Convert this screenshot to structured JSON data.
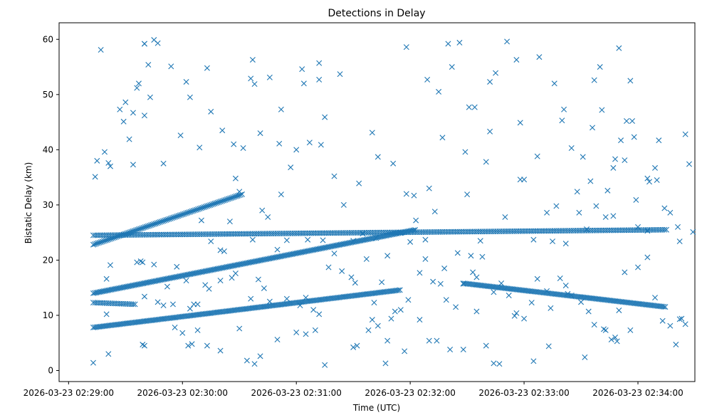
{
  "chart_data": {
    "type": "scatter",
    "title": "Detections in Delay",
    "xlabel": "Time (UTC)",
    "ylabel": "Bistatic Delay (km)",
    "x_unit": "seconds since 2026-03-23 02:29:00",
    "xlim": [
      -5,
      330
    ],
    "ylim": [
      -2,
      63
    ],
    "xticks": [
      {
        "value": 0,
        "label": "2026-03-23 02:29:00"
      },
      {
        "value": 60,
        "label": "2026-03-23 02:30:00"
      },
      {
        "value": 120,
        "label": "2026-03-23 02:31:00"
      },
      {
        "value": 180,
        "label": "2026-03-23 02:32:00"
      },
      {
        "value": 240,
        "label": "2026-03-23 02:33:00"
      },
      {
        "value": 300,
        "label": "2026-03-23 02:34:00"
      }
    ],
    "yticks": [
      0,
      10,
      20,
      30,
      40,
      50,
      60
    ],
    "marker": "x",
    "color": "#1f77b4",
    "tracks": [
      {
        "name": "lower rising track",
        "x_start": 13,
        "y_start": 7.8,
        "x_end": 175,
        "y_end": 14.6,
        "step": 0.8
      },
      {
        "name": "middle rising track",
        "x_start": 13,
        "y_start": 14,
        "x_end": 183,
        "y_end": 25.5,
        "step": 0.8
      },
      {
        "name": "upper diagonal track",
        "x_start": 13,
        "y_start": 22.8,
        "x_end": 92,
        "y_end": 32,
        "step": 0.8
      },
      {
        "name": "level track near 25 km",
        "x_start": 13,
        "y_start": 24.5,
        "x_end": 315,
        "y_end": 25.5,
        "step": 1.0
      },
      {
        "name": "descending track",
        "x_start": 208,
        "y_start": 15.8,
        "x_end": 315,
        "y_end": 11.5,
        "step": 0.8
      },
      {
        "name": "short 12 km segment",
        "x_start": 13,
        "y_start": 12.3,
        "x_end": 35,
        "y_end": 12,
        "step": 1.0
      }
    ],
    "points": [
      [
        13,
        1.4
      ],
      [
        14,
        35.1
      ],
      [
        15,
        38
      ],
      [
        17,
        58.1
      ],
      [
        19,
        39.6
      ],
      [
        21,
        37.6
      ],
      [
        22,
        37
      ],
      [
        22,
        19.1
      ],
      [
        20,
        16.6
      ],
      [
        20,
        10.2
      ],
      [
        21,
        3
      ],
      [
        27,
        47.3
      ],
      [
        29,
        45.1
      ],
      [
        30,
        48.6
      ],
      [
        32,
        41.9
      ],
      [
        34,
        37.3
      ],
      [
        34,
        46.7
      ],
      [
        36,
        51.2
      ],
      [
        37,
        52
      ],
      [
        40,
        59.2
      ],
      [
        40,
        46.2
      ],
      [
        42,
        55.4
      ],
      [
        43,
        49.5
      ],
      [
        40,
        59.2
      ],
      [
        45,
        59.9
      ],
      [
        47,
        59.3
      ],
      [
        50,
        37.5
      ],
      [
        54,
        55.1
      ],
      [
        59,
        42.6
      ],
      [
        62,
        52.3
      ],
      [
        64,
        49.5
      ],
      [
        69,
        40.4
      ],
      [
        73,
        54.8
      ],
      [
        75,
        46.9
      ],
      [
        81,
        43.5
      ],
      [
        87,
        41
      ],
      [
        92,
        40.3
      ],
      [
        96,
        52.9
      ],
      [
        97,
        56.3
      ],
      [
        98,
        51.9
      ],
      [
        101,
        43
      ],
      [
        106,
        53.1
      ],
      [
        111,
        41.1
      ],
      [
        112,
        47.3
      ],
      [
        117,
        36.8
      ],
      [
        120,
        40
      ],
      [
        123,
        54.6
      ],
      [
        124,
        52
      ],
      [
        127,
        41.3
      ],
      [
        132,
        55.7
      ],
      [
        132,
        52.7
      ],
      [
        133,
        40.9
      ],
      [
        135,
        45.9
      ],
      [
        140,
        35.2
      ],
      [
        143,
        53.7
      ],
      [
        153,
        33.9
      ],
      [
        160,
        43.1
      ],
      [
        163,
        38.7
      ],
      [
        171,
        37.5
      ],
      [
        178,
        58.6
      ],
      [
        182,
        31.7
      ],
      [
        183,
        27.2
      ],
      [
        189,
        52.7
      ],
      [
        195,
        50.5
      ],
      [
        197,
        42.2
      ],
      [
        200,
        59.2
      ],
      [
        202,
        55
      ],
      [
        206,
        59.4
      ],
      [
        211,
        47.7
      ],
      [
        209,
        39.6
      ],
      [
        210,
        31.9
      ],
      [
        214,
        47.7
      ],
      [
        220,
        37.8
      ],
      [
        222,
        43.3
      ],
      [
        222,
        52.3
      ],
      [
        225,
        53.9
      ],
      [
        231,
        59.6
      ],
      [
        236,
        56.3
      ],
      [
        238,
        44.9
      ],
      [
        247,
        38.8
      ],
      [
        248,
        56.8
      ],
      [
        256,
        52
      ],
      [
        257,
        29.8
      ],
      [
        260,
        45.3
      ],
      [
        261,
        47.3
      ],
      [
        265,
        40.3
      ],
      [
        268,
        32.4
      ],
      [
        271,
        38.7
      ],
      [
        275,
        34.3
      ],
      [
        276,
        44
      ],
      [
        277,
        52.6
      ],
      [
        280,
        55
      ],
      [
        281,
        47.2
      ],
      [
        284,
        32.6
      ],
      [
        287,
        36.7
      ],
      [
        288,
        38.3
      ],
      [
        290,
        58.4
      ],
      [
        291,
        41.7
      ],
      [
        293,
        38.1
      ],
      [
        294,
        45.2
      ],
      [
        296,
        52.5
      ],
      [
        297,
        45.2
      ],
      [
        298,
        42.3
      ],
      [
        299,
        30.9
      ],
      [
        305,
        34.8
      ],
      [
        306,
        34.2
      ],
      [
        309,
        36.7
      ],
      [
        310,
        34.5
      ],
      [
        311,
        41.7
      ],
      [
        314,
        29.4
      ],
      [
        317,
        28.6
      ],
      [
        325,
        42.8
      ],
      [
        327,
        37.4
      ],
      [
        329,
        25.1
      ],
      [
        322,
        23.4
      ],
      [
        321,
        26
      ],
      [
        36,
        19.6
      ],
      [
        38,
        19.8
      ],
      [
        39,
        19.6
      ],
      [
        40,
        13.4
      ],
      [
        45,
        19.2
      ],
      [
        50,
        11.8
      ],
      [
        52,
        15.2
      ],
      [
        55,
        12
      ],
      [
        57,
        18.8
      ],
      [
        62,
        16.3
      ],
      [
        64,
        11.2
      ],
      [
        66,
        12
      ],
      [
        68,
        12
      ],
      [
        72,
        15.5
      ],
      [
        74,
        14.8
      ],
      [
        80,
        16.3
      ],
      [
        82,
        21.6
      ],
      [
        86,
        16.8
      ],
      [
        88,
        17.6
      ],
      [
        96,
        13
      ],
      [
        100,
        16.5
      ],
      [
        103,
        14.9
      ],
      [
        106,
        12.5
      ],
      [
        110,
        21.9
      ],
      [
        115,
        13
      ],
      [
        122,
        11.8
      ],
      [
        125,
        13.2
      ],
      [
        129,
        11
      ],
      [
        132,
        10.2
      ],
      [
        137,
        18.7
      ],
      [
        144,
        18
      ],
      [
        149,
        16.9
      ],
      [
        151,
        15.9
      ],
      [
        157,
        20.2
      ],
      [
        161,
        12.3
      ],
      [
        165,
        16
      ],
      [
        170,
        9.4
      ],
      [
        175,
        11
      ],
      [
        179,
        12.8
      ],
      [
        185,
        17.7
      ],
      [
        188,
        20.2
      ],
      [
        192,
        16.1
      ],
      [
        196,
        15.7
      ],
      [
        199,
        12.8
      ],
      [
        204,
        11.5
      ],
      [
        208,
        15.7
      ],
      [
        213,
        17.8
      ],
      [
        215,
        16.9
      ],
      [
        218,
        20.6
      ],
      [
        224,
        14.2
      ],
      [
        228,
        15.8
      ],
      [
        232,
        13.6
      ],
      [
        236,
        10.4
      ],
      [
        240,
        9.4
      ],
      [
        244,
        12.3
      ],
      [
        247,
        16.6
      ],
      [
        252,
        14.4
      ],
      [
        254,
        11.3
      ],
      [
        259,
        16.7
      ],
      [
        262,
        15.4
      ],
      [
        265,
        13.6
      ],
      [
        270,
        12.4
      ],
      [
        274,
        10.7
      ],
      [
        277,
        8.3
      ],
      [
        282,
        7.5
      ],
      [
        286,
        5.6
      ],
      [
        290,
        10.9
      ],
      [
        293,
        17.8
      ],
      [
        300,
        18.7
      ],
      [
        305,
        20.5
      ],
      [
        309,
        13.2
      ],
      [
        313,
        9
      ],
      [
        317,
        8.1
      ],
      [
        322,
        9.3
      ],
      [
        325,
        8.4
      ],
      [
        39,
        4.7
      ],
      [
        40,
        4.5
      ],
      [
        47,
        12.4
      ],
      [
        56,
        7.8
      ],
      [
        60,
        6.8
      ],
      [
        63,
        4.5
      ],
      [
        65,
        4.8
      ],
      [
        68,
        7.3
      ],
      [
        73,
        4.5
      ],
      [
        80,
        3.6
      ],
      [
        90,
        7.6
      ],
      [
        94,
        1.8
      ],
      [
        98,
        1.2
      ],
      [
        101,
        2.6
      ],
      [
        110,
        5.6
      ],
      [
        120,
        6.9
      ],
      [
        125,
        6.6
      ],
      [
        130,
        7.3
      ],
      [
        135,
        1
      ],
      [
        150,
        4.2
      ],
      [
        152,
        4.5
      ],
      [
        158,
        7.3
      ],
      [
        160,
        9.2
      ],
      [
        163,
        8.1
      ],
      [
        167,
        1.3
      ],
      [
        168,
        5.4
      ],
      [
        172,
        10.7
      ],
      [
        177,
        3.5
      ],
      [
        185,
        9.2
      ],
      [
        190,
        5.4
      ],
      [
        194,
        5.4
      ],
      [
        201,
        3.8
      ],
      [
        208,
        3.8
      ],
      [
        215,
        10.7
      ],
      [
        220,
        4.5
      ],
      [
        224,
        1.3
      ],
      [
        227,
        1.2
      ],
      [
        235,
        9.9
      ],
      [
        245,
        1.7
      ],
      [
        253,
        4.4
      ],
      [
        263,
        13.9
      ],
      [
        272,
        2.4
      ],
      [
        283,
        7.3
      ],
      [
        288,
        6
      ],
      [
        289,
        5.3
      ],
      [
        296,
        7.3
      ],
      [
        320,
        4.7
      ],
      [
        323,
        9.4
      ],
      [
        70,
        27.2
      ],
      [
        75,
        23.4
      ],
      [
        80,
        21.8
      ],
      [
        85,
        27
      ],
      [
        88,
        34.8
      ],
      [
        90,
        32.4
      ],
      [
        97,
        23.7
      ],
      [
        102,
        29
      ],
      [
        105,
        27.8
      ],
      [
        112,
        31.9
      ],
      [
        115,
        23.6
      ],
      [
        126,
        23.7
      ],
      [
        134,
        23.6
      ],
      [
        140,
        21.2
      ],
      [
        145,
        30
      ],
      [
        150,
        23.5
      ],
      [
        155,
        24.8
      ],
      [
        162,
        24
      ],
      [
        168,
        20.8
      ],
      [
        175,
        24.9
      ],
      [
        178,
        32
      ],
      [
        180,
        23.3
      ],
      [
        188,
        23.7
      ],
      [
        190,
        33
      ],
      [
        193,
        28.8
      ],
      [
        198,
        18.5
      ],
      [
        205,
        21.3
      ],
      [
        212,
        20.8
      ],
      [
        217,
        23.5
      ],
      [
        230,
        27.8
      ],
      [
        238,
        34.6
      ],
      [
        240,
        34.6
      ],
      [
        245,
        23.7
      ],
      [
        252,
        28.6
      ],
      [
        255,
        23.4
      ],
      [
        262,
        23
      ],
      [
        269,
        28.6
      ],
      [
        273,
        25.6
      ],
      [
        278,
        29.8
      ],
      [
        283,
        27.8
      ],
      [
        287,
        28
      ],
      [
        300,
        26
      ],
      [
        305,
        25.3
      ]
    ]
  }
}
